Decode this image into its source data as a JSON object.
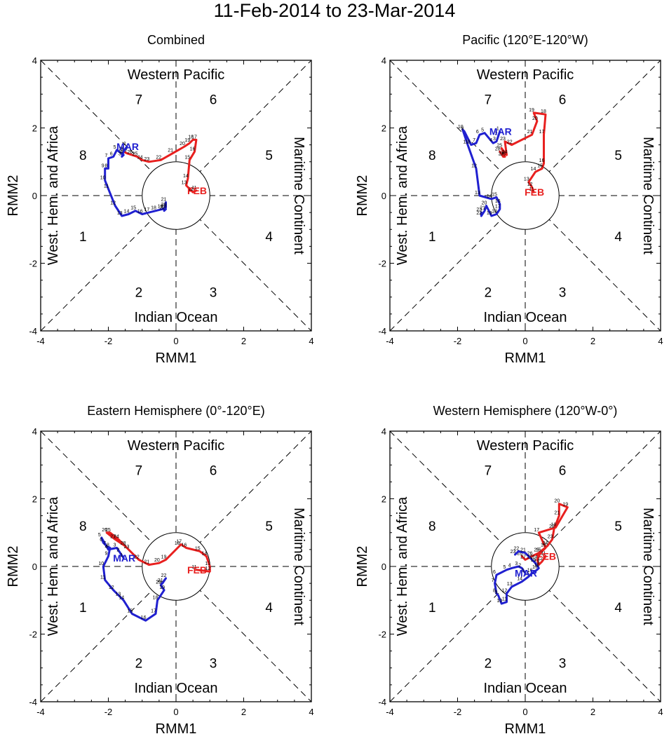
{
  "figure": {
    "title": "11-Feb-2014 to 23-Mar-2014",
    "colors": {
      "feb": "#e8201f",
      "mar": "#2020d0",
      "axes": "#000000"
    }
  },
  "chart_data": [
    {
      "type": "line",
      "title": "Combined",
      "xlabel": "RMM1",
      "ylabel": "RMM2",
      "xlim": [
        -4,
        4
      ],
      "ylim": [
        -4,
        4
      ],
      "ticks": [
        -4,
        -2,
        0,
        2,
        4
      ],
      "regions": {
        "top": "Western Pacific",
        "bottom": "Indian Ocean",
        "left": "West. Hem. and Africa",
        "right": "Maritime Continent"
      },
      "phases": [
        "1",
        "2",
        "3",
        "4",
        "5",
        "6",
        "7",
        "8"
      ],
      "series": [
        {
          "name": "FEB",
          "color": "#e8201f",
          "days": [
            "11",
            "12",
            "13",
            "14",
            "15",
            "16",
            "17",
            "18",
            "19",
            "20",
            "21",
            "22",
            "23",
            "24",
            "25",
            "26",
            "27",
            "28"
          ],
          "x": [
            0.6,
            0.5,
            0.3,
            0.35,
            0.4,
            0.55,
            0.6,
            0.5,
            0.4,
            0.25,
            -0.1,
            -0.45,
            -0.8,
            -1.0,
            -1.15,
            -1.3,
            -1.45,
            -1.55
          ],
          "y": [
            0.15,
            0.1,
            0.3,
            0.5,
            1.05,
            1.3,
            1.65,
            1.65,
            1.55,
            1.45,
            1.25,
            1.05,
            1.0,
            1.05,
            1.15,
            1.2,
            1.25,
            1.3
          ]
        },
        {
          "name": "MAR",
          "color": "#2020d0",
          "days": [
            "1",
            "2",
            "3",
            "4",
            "5",
            "6",
            "7",
            "8",
            "9",
            "10",
            "11",
            "12",
            "13",
            "14",
            "15",
            "16",
            "17",
            "18",
            "19",
            "20",
            "21",
            "22",
            "23"
          ],
          "x": [
            -1.45,
            -1.55,
            -1.6,
            -1.55,
            -1.75,
            -1.85,
            -2.0,
            -2.0,
            -2.1,
            -2.1,
            -2.0,
            -1.8,
            -1.6,
            -1.4,
            -1.2,
            -1.0,
            -0.8,
            -0.6,
            -0.4,
            -0.3,
            -0.3,
            -0.35,
            -0.3
          ],
          "y": [
            1.45,
            1.3,
            1.15,
            1.2,
            1.35,
            1.15,
            1.1,
            0.8,
            0.8,
            0.45,
            0.2,
            -0.3,
            -0.6,
            -0.55,
            -0.45,
            -0.55,
            -0.5,
            -0.45,
            -0.4,
            -0.35,
            -0.2,
            -0.45,
            -0.4
          ]
        }
      ]
    },
    {
      "type": "line",
      "title": "Pacific (120°E-120°W)",
      "xlabel": "RMM1",
      "ylabel": "RMM2",
      "xlim": [
        -4,
        4
      ],
      "ylim": [
        -4,
        4
      ],
      "ticks": [
        -4,
        -2,
        0,
        2,
        4
      ],
      "regions": {
        "top": "Western Pacific",
        "bottom": "Indian Ocean",
        "left": "West. Hem. and Africa",
        "right": "Maritime Continent"
      },
      "phases": [
        "1",
        "2",
        "3",
        "4",
        "5",
        "6",
        "7",
        "8"
      ],
      "series": [
        {
          "name": "FEB",
          "color": "#e8201f",
          "days": [
            "11",
            "12",
            "13",
            "14",
            "15",
            "16",
            "17",
            "18",
            "19",
            "20",
            "21",
            "22",
            "23",
            "24",
            "25",
            "26",
            "27",
            "28"
          ],
          "x": [
            0.25,
            0.2,
            0.1,
            0.3,
            0.5,
            0.55,
            0.55,
            0.6,
            0.25,
            0.35,
            0.2,
            -0.4,
            -0.6,
            -0.55,
            -0.7,
            -0.6,
            -0.65,
            -0.75
          ],
          "y": [
            0.1,
            0.25,
            0.4,
            0.7,
            0.8,
            0.95,
            1.8,
            2.4,
            2.45,
            2.2,
            1.8,
            1.5,
            1.6,
            1.2,
            1.4,
            1.15,
            1.15,
            1.3
          ]
        },
        {
          "name": "MAR",
          "color": "#2020d0",
          "days": [
            "1",
            "2",
            "3",
            "4",
            "5",
            "6",
            "7",
            "8",
            "9",
            "10",
            "11",
            "12",
            "13",
            "14",
            "15",
            "16",
            "17",
            "18",
            "19",
            "20",
            "21",
            "22",
            "23"
          ],
          "x": [
            -0.75,
            -0.8,
            -0.85,
            -0.95,
            -1.2,
            -1.35,
            -1.45,
            -1.6,
            -1.8,
            -1.85,
            -1.7,
            -1.45,
            -1.35,
            -1.0,
            -0.85,
            -0.75,
            -0.75,
            -0.85,
            -1.0,
            -1.15,
            -1.2,
            -1.3,
            -1.3
          ],
          "y": [
            1.9,
            1.75,
            1.6,
            1.55,
            1.85,
            1.8,
            1.55,
            1.5,
            1.9,
            1.95,
            1.5,
            0.8,
            0.0,
            -0.1,
            -0.05,
            -0.25,
            -0.4,
            -0.55,
            -0.6,
            -0.3,
            -0.45,
            -0.6,
            -0.5
          ]
        }
      ]
    },
    {
      "type": "line",
      "title": "Eastern Hemisphere (0°-120°E)",
      "xlabel": "RMM1",
      "ylabel": "RMM2",
      "xlim": [
        -4,
        4
      ],
      "ylim": [
        -4,
        4
      ],
      "ticks": [
        -4,
        -2,
        0,
        2,
        4
      ],
      "regions": {
        "top": "Western Pacific",
        "bottom": "Indian Ocean",
        "left": "West. Hem. and Africa",
        "right": "Maritime Continent"
      },
      "phases": [
        "1",
        "2",
        "3",
        "4",
        "5",
        "6",
        "7",
        "8"
      ],
      "series": [
        {
          "name": "FEB",
          "color": "#e8201f",
          "days": [
            "11",
            "12",
            "13",
            "14",
            "15",
            "16",
            "17",
            "18",
            "19",
            "20",
            "21",
            "22",
            "23",
            "24",
            "25",
            "26",
            "27",
            "28"
          ],
          "x": [
            0.6,
            1.0,
            1.0,
            0.9,
            0.7,
            0.3,
            0.15,
            0.1,
            -0.3,
            -0.5,
            -0.8,
            -1.1,
            -1.4,
            -1.7,
            -1.95,
            -2.05,
            -1.8,
            -1.5
          ],
          "y": [
            -0.1,
            -0.15,
            0.0,
            0.3,
            0.45,
            0.55,
            0.65,
            0.6,
            0.2,
            0.1,
            0.05,
            0.2,
            0.5,
            0.8,
            1.0,
            1.0,
            0.8,
            0.6
          ]
        },
        {
          "name": "MAR",
          "color": "#2020d0",
          "days": [
            "1",
            "2",
            "3",
            "4",
            "5",
            "6",
            "7",
            "8",
            "9",
            "10",
            "11",
            "12",
            "13",
            "14",
            "15",
            "16",
            "17",
            "18",
            "19",
            "20",
            "21",
            "22",
            "23"
          ],
          "x": [
            -1.55,
            -1.65,
            -1.75,
            -2.0,
            -2.2,
            -2.15,
            -2.05,
            -1.95,
            -2.0,
            -2.15,
            -2.1,
            -1.85,
            -1.65,
            -1.55,
            -1.3,
            -0.9,
            -0.6,
            -0.55,
            -0.35,
            -0.45,
            -0.4,
            -0.3,
            -0.45
          ],
          "y": [
            0.25,
            0.4,
            0.55,
            0.5,
            0.85,
            0.7,
            0.6,
            0.55,
            0.3,
            0.0,
            -0.4,
            -0.7,
            -0.9,
            -1.0,
            -1.4,
            -1.6,
            -1.4,
            -1.0,
            -0.7,
            -0.55,
            -0.5,
            -0.35,
            -0.55
          ]
        }
      ]
    },
    {
      "type": "line",
      "title": "Western Hemisphere (120°W-0°)",
      "xlabel": "RMM1",
      "ylabel": "RMM2",
      "xlim": [
        -4,
        4
      ],
      "ylim": [
        -4,
        4
      ],
      "ticks": [
        -4,
        -2,
        0,
        2,
        4
      ],
      "regions": {
        "top": "Western Pacific",
        "bottom": "Indian Ocean",
        "left": "West. Hem. and Africa",
        "right": "Maritime Continent"
      },
      "phases": [
        "1",
        "2",
        "3",
        "4",
        "5",
        "6",
        "7",
        "8"
      ],
      "series": [
        {
          "name": "FEB",
          "color": "#e8201f",
          "days": [
            "11",
            "12",
            "13",
            "14",
            "15",
            "16",
            "17",
            "18",
            "19",
            "20",
            "21",
            "22",
            "23",
            "24",
            "25",
            "26",
            "27",
            "28"
          ],
          "x": [
            0.6,
            0.5,
            0.4,
            0.35,
            0.45,
            0.6,
            0.4,
            0.9,
            1.25,
            1.0,
            1.0,
            0.85,
            0.8,
            0.65,
            0.4,
            0.2,
            0.0,
            -0.1
          ],
          "y": [
            0.3,
            0.15,
            0.05,
            0.2,
            0.4,
            0.55,
            1.0,
            1.15,
            1.75,
            1.85,
            1.5,
            1.1,
            0.8,
            0.6,
            0.4,
            0.3,
            0.2,
            0.3
          ]
        },
        {
          "name": "MAR",
          "color": "#2020d0",
          "days": [
            "1",
            "2",
            "3",
            "4",
            "5",
            "6",
            "7",
            "8",
            "9",
            "10",
            "11",
            "12",
            "13",
            "14",
            "15",
            "16",
            "17",
            "18",
            "19",
            "20",
            "21",
            "22",
            "23"
          ],
          "x": [
            0.0,
            -0.1,
            -0.2,
            -0.4,
            -0.55,
            -0.85,
            -0.9,
            -0.85,
            -0.8,
            -0.7,
            -0.55,
            -0.55,
            -0.4,
            -0.1,
            0.1,
            0.2,
            0.35,
            0.4,
            0.3,
            0.2,
            0.0,
            -0.2,
            -0.3
          ],
          "y": [
            -0.2,
            -0.05,
            0.0,
            -0.05,
            -0.1,
            -0.25,
            -0.5,
            -0.8,
            -0.85,
            -1.1,
            -1.05,
            -0.8,
            -0.6,
            -0.45,
            -0.3,
            -0.2,
            -0.1,
            -0.05,
            0.1,
            0.2,
            0.4,
            0.45,
            0.35
          ]
        }
      ]
    }
  ]
}
